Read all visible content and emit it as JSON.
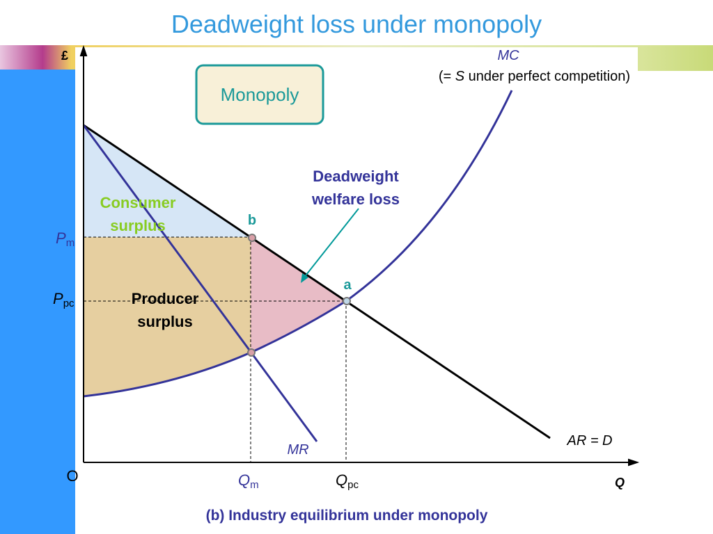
{
  "title": "Deadweight loss under monopoly",
  "axes": {
    "y_label": "£",
    "x_label": "Q",
    "origin": "O"
  },
  "curves": {
    "mc": "MC",
    "mc_note": {
      "open": "(= ",
      "s": "S",
      "rest": " under perfect competition)"
    },
    "mr": "MR",
    "demand": "AR = D"
  },
  "box": "Monopoly",
  "annotations": {
    "deadweight_line1": "Deadweight",
    "deadweight_line2": "welfare loss",
    "consumer_line1": "Consumer",
    "consumer_line2": "surplus",
    "producer_line1": "Producer",
    "producer_line2": "surplus"
  },
  "points": {
    "b": "b",
    "a": "a"
  },
  "prices": {
    "pm": {
      "main": "P",
      "sub": "m"
    },
    "ppc": {
      "main": "P",
      "sub": "pc"
    }
  },
  "quantities": {
    "qm": {
      "main": "Q",
      "sub": "m"
    },
    "qpc": {
      "main": "Q",
      "sub": "pc"
    }
  },
  "caption": "(b)  Industry equilibrium under monopoly"
}
